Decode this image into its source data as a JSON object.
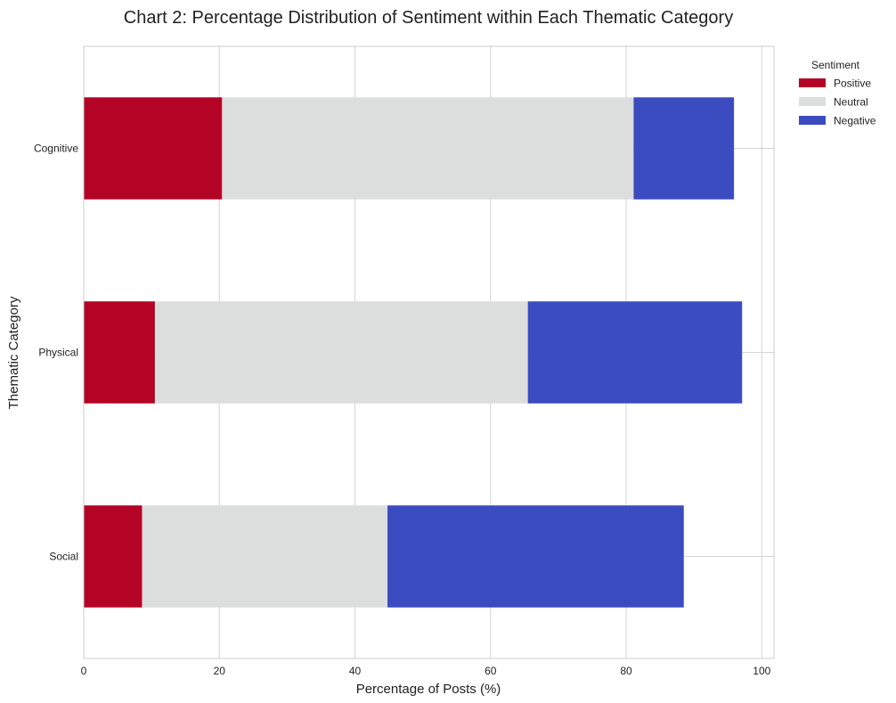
{
  "chart_data": {
    "type": "bar",
    "orientation": "horizontal",
    "stacked": true,
    "title": "Chart 2: Percentage Distribution of Sentiment within Each Thematic Category",
    "xlabel": "Percentage of Posts (%)",
    "ylabel": "Thematic Category",
    "xlim": [
      0,
      101.8
    ],
    "xticks": [
      "0",
      "20",
      "40",
      "60",
      "80",
      "100"
    ],
    "categories": [
      "Cognitive",
      "Physical",
      "Social"
    ],
    "series": [
      {
        "name": "Positive",
        "color": "#b40426",
        "values": [
          20.4,
          10.5,
          8.6
        ]
      },
      {
        "name": "Neutral",
        "color": "#dcdddd",
        "values": [
          60.7,
          55.0,
          36.2
        ]
      },
      {
        "name": "Negative",
        "color": "#3b4cc0",
        "values": [
          14.8,
          31.6,
          43.7
        ]
      }
    ],
    "legend": {
      "title": "Sentiment",
      "placement": "outside-top-right"
    },
    "grid": true
  }
}
